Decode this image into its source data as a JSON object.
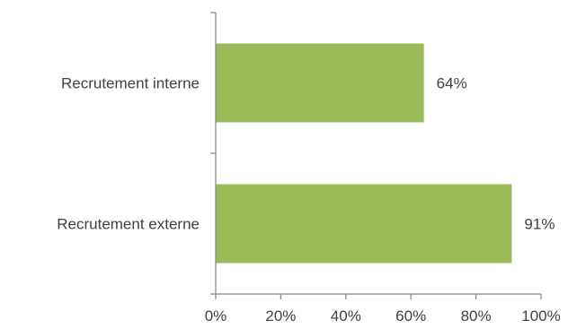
{
  "chart_data": {
    "type": "bar",
    "orientation": "horizontal",
    "categories": [
      "Recrutement interne",
      "Recrutement externe"
    ],
    "values": [
      64,
      91
    ],
    "value_labels": [
      "64%",
      "91%"
    ],
    "xlim": [
      0,
      100
    ],
    "xticks": [
      0,
      20,
      40,
      60,
      80,
      100
    ],
    "xtick_labels": [
      "0%",
      "20%",
      "40%",
      "60%",
      "80%",
      "100%"
    ],
    "grid": false,
    "legend": "none",
    "bar_color": "#9bbb59"
  }
}
